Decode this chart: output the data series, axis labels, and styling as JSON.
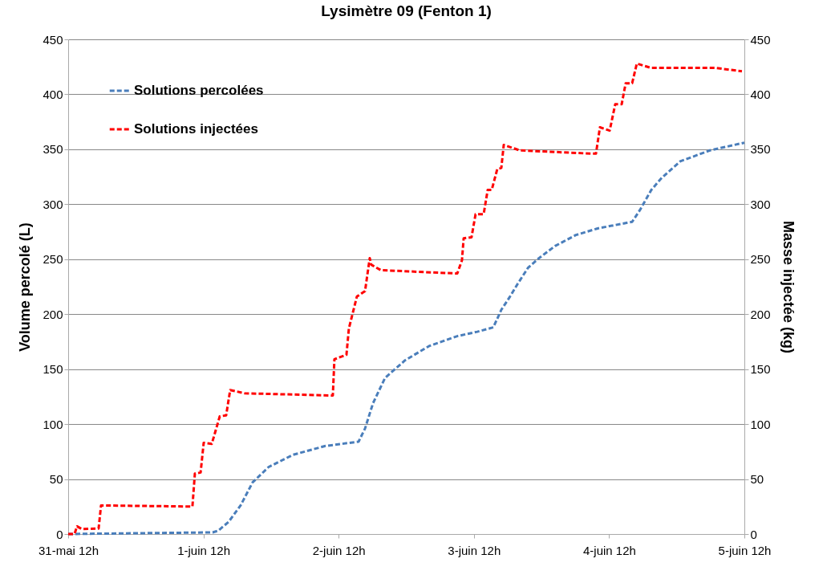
{
  "chart_data": {
    "type": "line",
    "title": "Lysimètre 09 (Fenton 1)",
    "ylabel": "Volume percolé (L)",
    "y2label": "Masse injectée (kg)",
    "xlim": [
      "--05-31T12:00",
      "--06-05T12:00"
    ],
    "xticks": [
      {
        "value": "--05-31T12:00",
        "label": "31-mai 12h"
      },
      {
        "value": "--06-01T12:00",
        "label": "1-juin 12h"
      },
      {
        "value": "--06-02T12:00",
        "label": "2-juin 12h"
      },
      {
        "value": "--06-03T12:00",
        "label": "3-juin 12h"
      },
      {
        "value": "--06-04T12:00",
        "label": "4-juin 12h"
      },
      {
        "value": "--06-05T12:00",
        "label": "5-juin 12h"
      }
    ],
    "ylim": [
      0,
      450
    ],
    "yticks": [
      0,
      50,
      100,
      150,
      200,
      250,
      300,
      350,
      400,
      450
    ],
    "y2lim": [
      0,
      450
    ],
    "y2ticks": [
      0,
      50,
      100,
      150,
      200,
      250,
      300,
      350,
      400,
      450
    ],
    "grid": "y",
    "legend": "top left",
    "line_style": "dashed",
    "marker": "none",
    "series": [
      {
        "name": "Solutions percolées",
        "color": "#4a7ebb",
        "x": [
          "--05-31T12:00",
          "--06-01T13:38",
          "--06-01T14:37",
          "--06-01T16:28",
          "--06-01T18:36",
          "--06-01T20:44",
          "--06-01T23:35",
          "--06-02T03:52",
          "--06-02T09:33",
          "--06-02T15:32",
          "--06-02T16:41",
          "--06-02T18:06",
          "--06-02T20:14",
          "--06-02T23:47",
          "--06-03T04:03",
          "--06-03T09:03",
          "--06-03T12:36",
          "--06-03T15:27",
          "--06-03T16:52",
          "--06-03T18:17",
          "--06-03T19:42",
          "--06-03T21:35",
          "--06-03T23:34",
          "--06-04T02:24",
          "--06-04T06:06",
          "--06-04T09:58",
          "--06-04T16:05",
          "--06-04T17:30",
          "--06-04T19:29",
          "--06-04T21:20",
          "--06-05T00:37",
          "--06-05T05:53",
          "--06-05T12:00"
        ],
        "values": [
          0,
          1.5,
          3,
          11,
          26,
          47,
          61,
          72,
          80,
          84,
          96,
          119,
          142,
          158,
          171,
          180,
          184,
          188,
          204,
          215,
          227,
          242,
          251,
          262,
          272,
          278,
          284,
          295,
          313,
          324,
          339,
          349,
          356
        ]
      },
      {
        "name": "Solutions injectées",
        "color": "#ff0000",
        "axis": "y2",
        "x": [
          "--05-31T12:00",
          "--05-31T13:08",
          "--05-31T13:34",
          "--05-31T14:25",
          "--05-31T17:24",
          "--05-31T17:50",
          "--06-01T10:03",
          "--06-01T10:29",
          "--06-01T11:30",
          "--06-01T12:03",
          "--06-01T13:29",
          "--06-01T14:54",
          "--06-01T16:02",
          "--06-01T16:45",
          "--06-01T19:19",
          "--06-02T10:58",
          "--06-02T11:15",
          "--06-02T13:23",
          "--06-02T13:49",
          "--06-02T15:14",
          "--06-02T16:41",
          "--06-02T17:31",
          "--06-02T17:48",
          "--06-02T19:30",
          "--06-03T09:03",
          "--06-03T09:53",
          "--06-03T10:11",
          "--06-03T11:35",
          "--06-03T12:18",
          "--06-03T13:44",
          "--06-03T14:27",
          "--06-03T15:10",
          "--06-03T16:09",
          "--06-03T16:52",
          "--06-03T17:18",
          "--06-03T20:08",
          "--06-04T08:57",
          "--06-04T09:40",
          "--06-04T10:22",
          "--06-04T12:06",
          "--06-04T13:05",
          "--06-04T14:14",
          "--06-04T14:56",
          "--06-04T16:05",
          "--06-04T16:55",
          "--06-04T19:29",
          "--06-05T06:52",
          "--06-05T11:34"
        ],
        "values": [
          0,
          0,
          7,
          4.5,
          5,
          26,
          25,
          55,
          56,
          83,
          82,
          107,
          108,
          131,
          128,
          126,
          159,
          163,
          187,
          216,
          221,
          251,
          245,
          240,
          237,
          249,
          269,
          270,
          291,
          291,
          313,
          313,
          332,
          333,
          354,
          349,
          346,
          346,
          370,
          367,
          391,
          391,
          410,
          410,
          428,
          424,
          424,
          421
        ]
      }
    ]
  }
}
